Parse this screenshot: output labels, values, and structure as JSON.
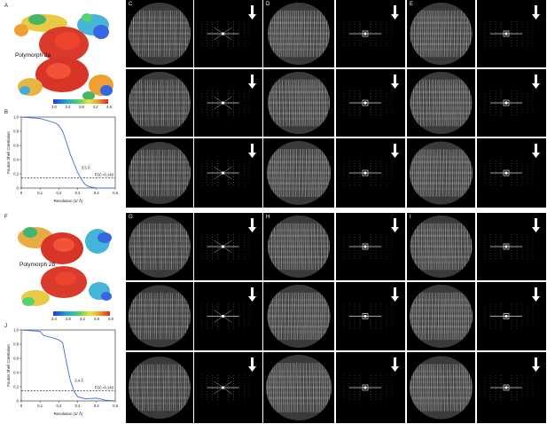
{
  "panel_labels": {
    "A": "A",
    "B": "B",
    "C": "C",
    "D": "D",
    "E": "E",
    "F": "F",
    "G": "G",
    "H": "H",
    "I": "I",
    "J": "J"
  },
  "polymorph_a": {
    "title": "Polymorph 2a",
    "colorbar_ticks": [
      "3.0",
      "3.4",
      "3.8",
      "4.2",
      "4.6"
    ]
  },
  "polymorph_b": {
    "title": "Polymorph 2b",
    "colorbar_ticks": [
      "3.4",
      "3.8",
      "4.2",
      "4.6",
      "5.0"
    ]
  },
  "fsc_a": {
    "ylabel": "Fourier Shell Correlation",
    "xlabel": "Resolution (1/ Å)",
    "yticks": [
      "0",
      "0.2",
      "0.4",
      "0.6",
      "0.8",
      "1.0"
    ],
    "xticks": [
      "0",
      "0.1",
      "0.2",
      "0.3",
      "0.4",
      "0.5"
    ],
    "resolution_label": "3.5 Å",
    "threshold_label": "FSC=0.143"
  },
  "fsc_b": {
    "ylabel": "Fourier Shell Correlation",
    "xlabel": "Resolution (1/ Å)",
    "yticks": [
      "0",
      "0.2",
      "0.4",
      "0.6",
      "0.8",
      "1.0"
    ],
    "xticks": [
      "0",
      "0.1",
      "0.2",
      "0.3",
      "0.4",
      "0.5"
    ],
    "resolution_label": "3.4 Å",
    "threshold_label": "FSC=0.143"
  },
  "chart_data": [
    {
      "type": "line",
      "x": [
        0.0,
        0.05,
        0.1,
        0.14,
        0.18,
        0.2,
        0.22,
        0.24,
        0.26,
        0.28,
        0.3,
        0.32,
        0.34,
        0.36,
        0.4,
        0.45,
        0.5
      ],
      "series": [
        {
          "values": [
            1.0,
            0.99,
            0.98,
            0.95,
            0.92,
            0.88,
            0.8,
            0.65,
            0.48,
            0.35,
            0.22,
            0.12,
            0.05,
            0.02,
            0.0,
            0.0,
            0.0
          ]
        }
      ],
      "xlim": [
        0,
        0.5
      ],
      "ylim": [
        0,
        1.0
      ],
      "threshold": 0.143,
      "annotation": "3.5 Å"
    },
    {
      "type": "line",
      "x": [
        0.0,
        0.05,
        0.1,
        0.12,
        0.15,
        0.18,
        0.2,
        0.22,
        0.24,
        0.26,
        0.28,
        0.3,
        0.34,
        0.4,
        0.45,
        0.5
      ],
      "series": [
        {
          "values": [
            1.0,
            0.99,
            0.98,
            0.92,
            0.9,
            0.88,
            0.86,
            0.82,
            0.55,
            0.3,
            0.14,
            0.06,
            0.03,
            0.04,
            0.01,
            0.0
          ]
        }
      ],
      "xlim": [
        0,
        0.5
      ],
      "ylim": [
        0,
        1.0
      ],
      "threshold": 0.143,
      "annotation": "3.4 Å"
    }
  ]
}
